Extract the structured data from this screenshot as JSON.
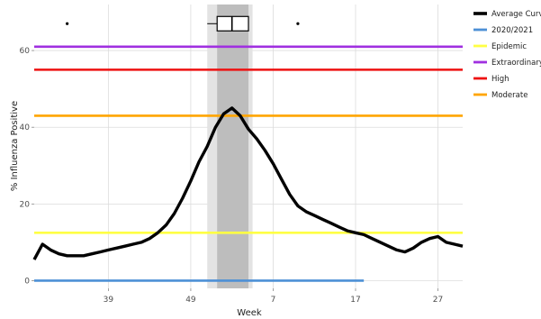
{
  "chart_data": {
    "type": "line",
    "title": "",
    "xlabel": "Week",
    "ylabel": "% Influenza Positive",
    "xlim": [
      30,
      82
    ],
    "ylim": [
      -2,
      72
    ],
    "x_ticks": [
      {
        "x": 39,
        "label": "39"
      },
      {
        "x": 49,
        "label": "49"
      },
      {
        "x": 59,
        "label": "7"
      },
      {
        "x": 69,
        "label": "17"
      },
      {
        "x": 79,
        "label": "27"
      }
    ],
    "y_ticks": [
      0,
      20,
      40,
      60
    ],
    "legend_position": "right",
    "series": [
      {
        "name": "Average Curve",
        "color": "#000000",
        "x": [
          30,
          31,
          32,
          33,
          34,
          35,
          36,
          37,
          38,
          39,
          40,
          41,
          42,
          43,
          44,
          45,
          46,
          47,
          48,
          49,
          50,
          51,
          52,
          53,
          54,
          55,
          56,
          57,
          58,
          59,
          60,
          61,
          62,
          63,
          64,
          65,
          66,
          67,
          68,
          69,
          70,
          71,
          72,
          73,
          74,
          75,
          76,
          77,
          78,
          79,
          80,
          81,
          82
        ],
        "y": [
          5.5,
          9.5,
          8.0,
          7.0,
          6.5,
          6.5,
          6.5,
          7.0,
          7.5,
          8.0,
          8.5,
          9.0,
          9.5,
          10.0,
          11.0,
          12.5,
          14.5,
          17.5,
          21.5,
          26.0,
          31.0,
          35.0,
          40.0,
          43.5,
          45.0,
          43.0,
          39.5,
          37.0,
          34.0,
          30.5,
          26.5,
          22.5,
          19.5,
          18.0,
          17.0,
          16.0,
          15.0,
          14.0,
          13.0,
          12.5,
          12.0,
          11.0,
          10.0,
          9.0,
          8.0,
          7.5,
          8.5,
          10.0,
          11.0,
          11.5,
          10.0,
          9.5,
          9.0
        ]
      },
      {
        "name": "2020/2021",
        "color": "#4d90d6",
        "x": [
          30,
          70
        ],
        "y": [
          0,
          0
        ]
      },
      {
        "name": "Epidemic",
        "color": "#ffff44",
        "x": [
          30,
          82
        ],
        "y": [
          12.5,
          12.5
        ]
      },
      {
        "name": "Extraordinary",
        "color": "#a030e0",
        "x": [
          30,
          82
        ],
        "y": [
          61,
          61
        ]
      },
      {
        "name": "High",
        "color": "#ee1111",
        "x": [
          30,
          82
        ],
        "y": [
          55,
          55
        ]
      },
      {
        "name": "Moderate",
        "color": "#ffa500",
        "x": [
          30,
          82
        ],
        "y": [
          43,
          43
        ]
      }
    ],
    "peak_band": {
      "outer": [
        51,
        56.5
      ],
      "inner": [
        52.2,
        56.0
      ],
      "color_outer": "#e3e3e3",
      "color_inner": "#bdbdbd"
    },
    "peak_boxplot": {
      "y": 67,
      "whisker_low": 51,
      "q1": 52.2,
      "median": 54,
      "q3": 56.0,
      "whisker_high": 56.0,
      "outliers": [
        34,
        62
      ]
    }
  },
  "legend": [
    {
      "label": "Average Curve",
      "color": "#000000"
    },
    {
      "label": "2020/2021",
      "color": "#4d90d6"
    },
    {
      "label": "Epidemic",
      "color": "#ffff44"
    },
    {
      "label": "Extraordinary",
      "color": "#a030e0"
    },
    {
      "label": "High",
      "color": "#ee1111"
    },
    {
      "label": "Moderate",
      "color": "#ffa500"
    }
  ]
}
